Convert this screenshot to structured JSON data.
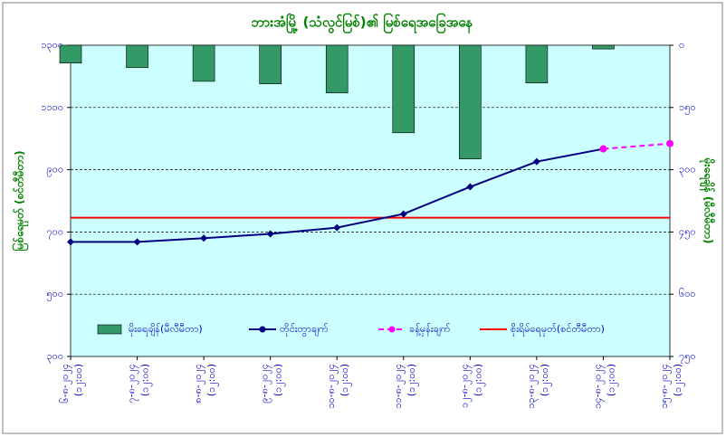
{
  "chart_data": {
    "type": "combo",
    "title": "ဘားအံမြို့ (သံလွင်မြစ်)၏ မြစ်ရေအခြေအနေ",
    "y_label": "မြစ်ရေမှတ် (စင်တီမီတာ)",
    "y2_label": "မိုးရေချိန် (မီလီမီတာ)",
    "categories": [
      "၆-၈-၂၀၂၄",
      "၇-၈-၂၀၂၄",
      "၈-၈-၂၀၂၄",
      "၉-၈-၂၀၂၄",
      "၁၀-၈-၂၀၂၄",
      "၁၁-၈-၂၀၂၄",
      "၁၂-၈-၂၀၂၄",
      "၁၃-၈-၂၀၂၄",
      "၁၄-၈-၂၀၂၄",
      "၁၅-၈-၂၀၂၄"
    ],
    "category_times": [
      "(၁၂:၀၀)",
      "(၁၂:၀၀)",
      "(၁၂:၀၀)",
      "(၁၂:၀၀)",
      "(၁၂:၀၀)",
      "(၁၂:၀၀)",
      "(၁၂:၀၀)",
      "(၁၂:၀၀)",
      "(၁၂:၀၀)",
      "(၁၂:၀၀)"
    ],
    "ylim": [
      300,
      1300
    ],
    "yticks": [
      {
        "value": 300,
        "label": "၃၀၀"
      },
      {
        "value": 500,
        "label": "၅၀၀"
      },
      {
        "value": 700,
        "label": "၇၀၀"
      },
      {
        "value": 900,
        "label": "၉၀၀"
      },
      {
        "value": 1100,
        "label": "၁၁၀၀"
      },
      {
        "value": 1300,
        "label": "၁၃၀၀"
      }
    ],
    "y2lim": [
      750,
      0
    ],
    "y2ticks": [
      {
        "value": 0,
        "label": "၀"
      },
      {
        "value": 150,
        "label": "၁၅၀"
      },
      {
        "value": 300,
        "label": "၃၀၀"
      },
      {
        "value": 450,
        "label": "၄၅၀"
      },
      {
        "value": 600,
        "label": "၆၀၀"
      },
      {
        "value": 750,
        "label": "၇၅၀"
      }
    ],
    "grid": true,
    "series": [
      {
        "name": "မိုးရေချိန်(မီလီမီတာ)",
        "kind": "bar",
        "axis": "y2",
        "color": "#339966",
        "values": [
          43,
          54,
          87,
          93,
          115,
          211,
          274,
          91,
          9,
          null
        ]
      },
      {
        "name": "တိုင်းတွာချက်",
        "kind": "line",
        "color": "#000080",
        "values": [
          668,
          668,
          680,
          694,
          714,
          758,
          845,
          926,
          967,
          null
        ]
      },
      {
        "name": "ခန့်မှန်းချက်",
        "kind": "dashed",
        "color": "#ff00ff",
        "values": [
          null,
          null,
          null,
          null,
          null,
          null,
          null,
          null,
          967,
          984
        ]
      }
    ],
    "danger": {
      "name": "စိုးရိမ်ရေမှတ်(စင်တီမီတာ)",
      "value": 746,
      "color": "#ff0000"
    }
  }
}
